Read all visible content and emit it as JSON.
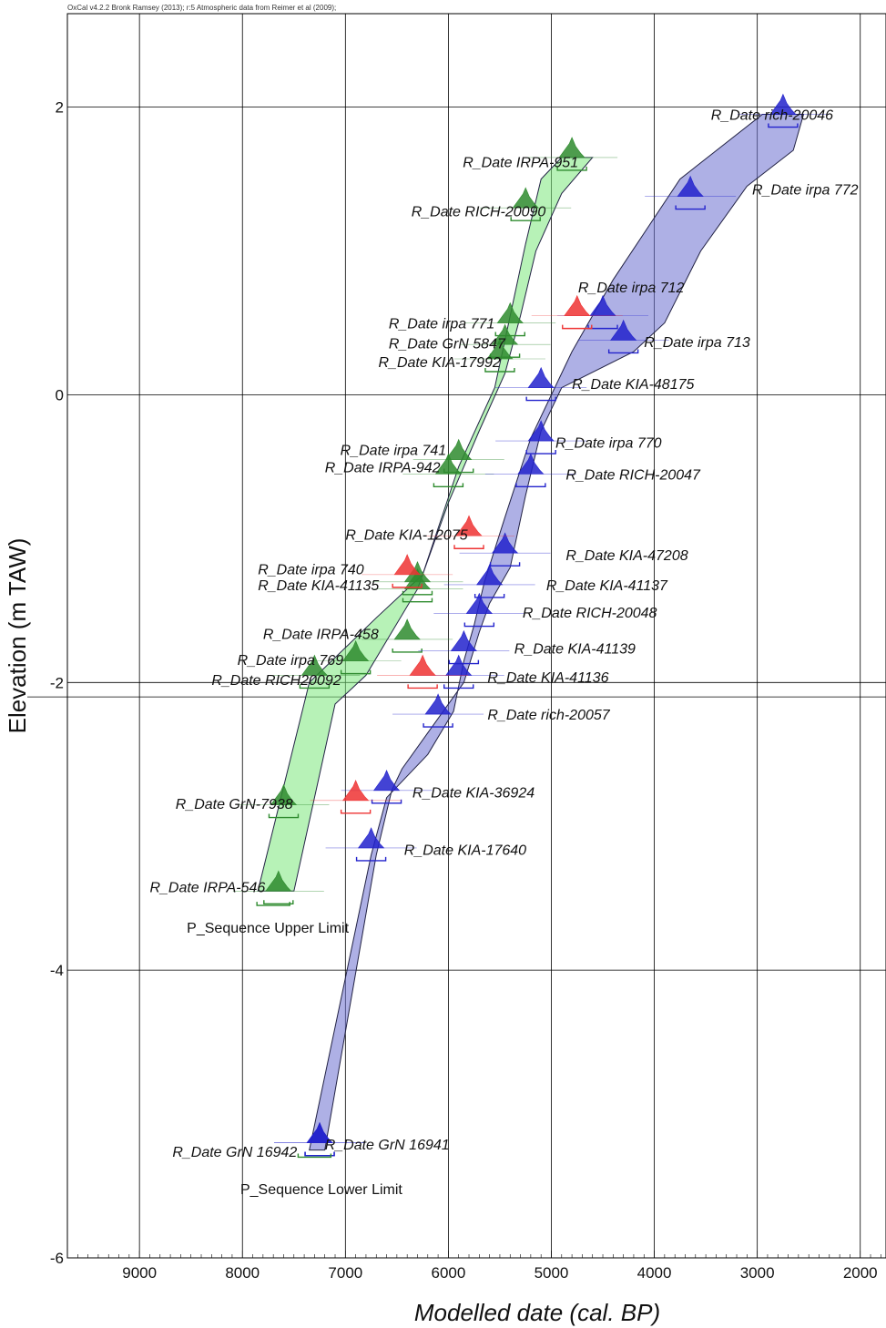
{
  "credit": "OxCal v4.2.2 Bronk Ramsey (2013); r:5 Atmospheric data from Reimer et al (2009);",
  "colors": {
    "green_band": "#7be87b",
    "blue_band": "#6b6fd0",
    "green_peak": "#2e8b2e",
    "blue_peak": "#2222cc",
    "red_peak": "#ee3333"
  },
  "chart_data": {
    "type": "scatter",
    "xlabel": "Modelled date (cal. BP)",
    "ylabel": "Elevation (m TAW)",
    "xlim": [
      9700,
      1750
    ],
    "ylim": [
      -6,
      2.65
    ],
    "x_reversed": true,
    "x_ticks": [
      9000,
      8000,
      7000,
      6000,
      5000,
      4000,
      3000,
      2000
    ],
    "y_ticks": [
      2,
      0,
      -2,
      -4,
      -6
    ],
    "grid": true,
    "extra_hline": -2.1,
    "series": [
      {
        "name": "green",
        "color": "#2e8b2e",
        "band_left": [
          [
            7850,
            -3.45
          ],
          [
            7350,
            -2.0
          ],
          [
            6700,
            -1.55
          ],
          [
            6250,
            -1.25
          ],
          [
            5900,
            -0.5
          ],
          [
            5550,
            0.05
          ],
          [
            5400,
            0.55
          ],
          [
            5250,
            1.05
          ],
          [
            5100,
            1.5
          ],
          [
            4900,
            1.65
          ]
        ],
        "band_right": [
          [
            4600,
            1.65
          ],
          [
            4900,
            1.4
          ],
          [
            5150,
            1.0
          ],
          [
            5300,
            0.55
          ],
          [
            5450,
            0.15
          ],
          [
            5700,
            -0.25
          ],
          [
            6000,
            -0.75
          ],
          [
            6300,
            -1.35
          ],
          [
            6800,
            -1.95
          ],
          [
            7100,
            -2.15
          ],
          [
            7500,
            -3.45
          ]
        ],
        "points": [
          {
            "name": "R_Date IRPA-951",
            "x": 4800,
            "y": 1.65,
            "label_x": 5860,
            "label_y": 1.62
          },
          {
            "name": "R_Date RICH-20090",
            "x": 5250,
            "y": 1.3,
            "label_x": 6360,
            "label_y": 1.28
          },
          {
            "name": "R_Date irpa 771",
            "x": 5400,
            "y": 0.5,
            "label_x": 6580,
            "label_y": 0.5
          },
          {
            "name": "R_Date GrN 5847",
            "x": 5450,
            "y": 0.35,
            "label_x": 6580,
            "label_y": 0.36
          },
          {
            "name": "R_Date KIA-17992",
            "x": 5500,
            "y": 0.25,
            "label_x": 6680,
            "label_y": 0.23
          },
          {
            "name": "R_Date irpa 741",
            "x": 5900,
            "y": -0.45,
            "label_x": 7050,
            "label_y": -0.38
          },
          {
            "name": "R_Date IRPA-942",
            "x": 6000,
            "y": -0.55,
            "label_x": 7200,
            "label_y": -0.5
          },
          {
            "name": "R_Date irpa 740",
            "x": 6300,
            "y": -1.3,
            "label_x": 7850,
            "label_y": -1.21
          },
          {
            "name": "R_Date KIA-41135",
            "x": 6300,
            "y": -1.35,
            "label_x": 7850,
            "label_y": -1.32
          },
          {
            "name": "R_Date IRPA-458",
            "x": 6400,
            "y": -1.7,
            "label_x": 7800,
            "label_y": -1.66
          },
          {
            "name": "R_Date irpa 769",
            "x": 6900,
            "y": -1.85,
            "label_x": 8050,
            "label_y": -1.84
          },
          {
            "name": "R_Date RICH20092",
            "x": 7300,
            "y": -1.95,
            "label_x": 8300,
            "label_y": -1.98
          },
          {
            "name": "R_Date GrN-7938",
            "x": 7600,
            "y": -2.85,
            "label_x": 8650,
            "label_y": -2.84
          },
          {
            "name": "R_Date IRPA-546",
            "x": 7650,
            "y": -3.45,
            "label_x": 8900,
            "label_y": -3.42
          }
        ]
      },
      {
        "name": "blue",
        "color": "#2222cc",
        "band_left": [
          [
            7350,
            -5.25
          ],
          [
            6750,
            -3.2
          ],
          [
            6600,
            -2.8
          ],
          [
            6200,
            -2.5
          ],
          [
            5950,
            -2.2
          ],
          [
            5850,
            -1.85
          ],
          [
            5750,
            -1.6
          ],
          [
            5650,
            -1.3
          ],
          [
            5450,
            -0.85
          ],
          [
            5200,
            -0.3
          ],
          [
            5000,
            0.0
          ],
          [
            4800,
            0.3
          ],
          [
            4400,
            0.8
          ],
          [
            3750,
            1.5
          ],
          [
            2950,
            1.95
          ],
          [
            2550,
            1.95
          ]
        ],
        "band_right": [
          [
            2550,
            1.95
          ],
          [
            2650,
            1.7
          ],
          [
            3100,
            1.45
          ],
          [
            3550,
            1.0
          ],
          [
            3900,
            0.5
          ],
          [
            4200,
            0.3
          ],
          [
            4900,
            0.05
          ],
          [
            5100,
            -0.25
          ],
          [
            5250,
            -0.7
          ],
          [
            5400,
            -1.2
          ],
          [
            5600,
            -1.45
          ],
          [
            5700,
            -1.65
          ],
          [
            5850,
            -2.0
          ],
          [
            6200,
            -2.35
          ],
          [
            6450,
            -2.6
          ],
          [
            6550,
            -2.75
          ],
          [
            6700,
            -3.2
          ],
          [
            7200,
            -5.25
          ]
        ]
      },
      {
        "name": "blue-dates",
        "color": "#2222cc",
        "points": [
          {
            "name": "R_Date rich-20046",
            "x": 2750,
            "y": 1.95,
            "label_x": 3450,
            "label_y": 1.95
          },
          {
            "name": "R_Date irpa 772",
            "x": 3650,
            "y": 1.38,
            "label_x": 3050,
            "label_y": 1.43
          },
          {
            "name": "R_Date irpa 712",
            "x": 4500,
            "y": 0.55,
            "label_x": 4740,
            "label_y": 0.75
          },
          {
            "name": "R_Date irpa 713",
            "x": 4300,
            "y": 0.38,
            "label_x": 4100,
            "label_y": 0.37
          },
          {
            "name": "R_Date KIA-48175",
            "x": 5100,
            "y": 0.05,
            "label_x": 4800,
            "label_y": 0.08
          },
          {
            "name": "R_Date irpa 770",
            "x": 5100,
            "y": -0.32,
            "label_x": 4960,
            "label_y": -0.33
          },
          {
            "name": "R_Date RICH-20047",
            "x": 5200,
            "y": -0.55,
            "label_x": 4860,
            "label_y": -0.55
          },
          {
            "name": "R_Date KIA-47208",
            "x": 5450,
            "y": -1.1,
            "label_x": 4860,
            "label_y": -1.11
          },
          {
            "name": "R_Date KIA-41137",
            "x": 5600,
            "y": -1.32,
            "label_x": 5050,
            "label_y": -1.32
          },
          {
            "name": "R_Date RICH-20048",
            "x": 5700,
            "y": -1.52,
            "label_x": 5280,
            "label_y": -1.51
          },
          {
            "name": "R_Date KIA-41139",
            "x": 5850,
            "y": -1.78,
            "label_x": 5360,
            "label_y": -1.76
          },
          {
            "name": "R_Date KIA-41136",
            "x": 5900,
            "y": -1.95,
            "label_x": 5620,
            "label_y": -1.96
          },
          {
            "name": "R_Date rich-20057",
            "x": 6100,
            "y": -2.22,
            "label_x": 5620,
            "label_y": -2.22
          },
          {
            "name": "R_Date KIA-36924",
            "x": 6600,
            "y": -2.75,
            "label_x": 6350,
            "label_y": -2.76
          },
          {
            "name": "R_Date KIA-17640",
            "x": 6750,
            "y": -3.15,
            "label_x": 6430,
            "label_y": -3.16
          },
          {
            "name": "R_Date GrN 16942",
            "x": 7250,
            "y": -5.2,
            "label_x": 8680,
            "label_y": -5.26
          },
          {
            "name": "R_Date GrN 16941",
            "x": 7250,
            "y": -5.2,
            "label_x": 7200,
            "label_y": -5.21
          }
        ]
      },
      {
        "name": "red-dates",
        "color": "#ee3333",
        "points": [
          {
            "name": "R_Date irpa 712",
            "x": 4750,
            "y": 0.55
          },
          {
            "name": "R_Date KIA-12075",
            "x": 5800,
            "y": -0.98
          },
          {
            "name": "R_Date irpa 740",
            "x": 6400,
            "y": -1.25
          },
          {
            "name": "R_Date RICH20092",
            "x": 6250,
            "y": -1.95
          },
          {
            "name": "R_Date GrN-7938",
            "x": 6900,
            "y": -2.82
          }
        ],
        "labels": [
          {
            "name": "R_Date KIA-12075",
            "label_x": 7000,
            "label_y": -0.97
          }
        ]
      }
    ],
    "limits": [
      {
        "name": "P_Sequence Upper Limit",
        "x": 7700,
        "y": -3.55,
        "label_x": 8540,
        "label_y": -3.7
      },
      {
        "name": "P_Sequence Lower Limit",
        "x": 7300,
        "y": -5.3,
        "label_x": 8020,
        "label_y": -5.52
      }
    ]
  }
}
